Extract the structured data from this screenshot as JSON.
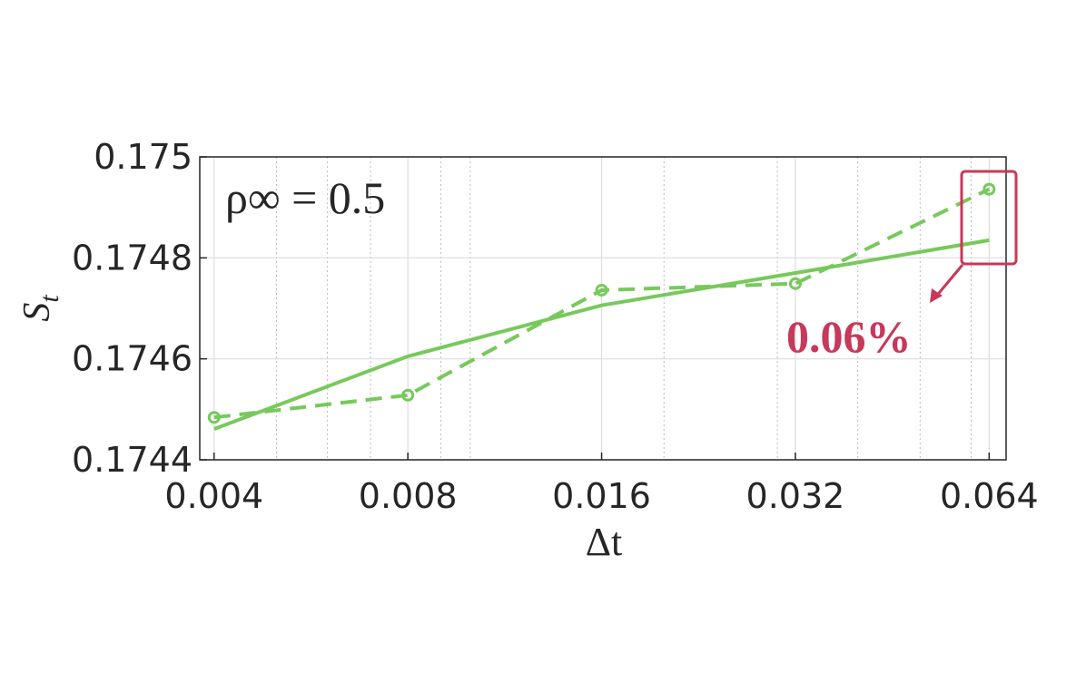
{
  "chart_data": {
    "type": "line",
    "x_label": "Δt",
    "y_label": "S",
    "y_label_sub": "t",
    "annotations": [
      "ρ∞ = 0.5",
      "0.06%"
    ],
    "x": [
      0.004,
      0.008,
      0.016,
      0.032,
      0.064
    ],
    "series": [
      {
        "color": "#77c95c",
        "dash": true,
        "markers": true,
        "values": [
          0.174484,
          0.174528,
          0.174736,
          0.174749,
          0.174936
        ]
      },
      {
        "color": "#77c95c",
        "dash": false,
        "markers": false,
        "values": [
          0.174461,
          0.174605,
          0.174706,
          0.17477,
          0.174835
        ]
      }
    ],
    "xscale": "log",
    "xlim": [
      0.0038,
      0.068
    ],
    "xticks": [
      0.004,
      0.008,
      0.016,
      0.032,
      0.064
    ],
    "xminorticks": [
      0.005,
      0.006,
      0.007,
      0.009,
      0.01,
      0.02,
      0.03,
      0.04,
      0.05,
      0.06
    ],
    "ylim": [
      0.1744,
      0.175
    ],
    "yticks": [
      0.1744,
      0.1746,
      0.1748,
      0.175
    ],
    "grid": true,
    "annotation_color": "#c8385a"
  }
}
